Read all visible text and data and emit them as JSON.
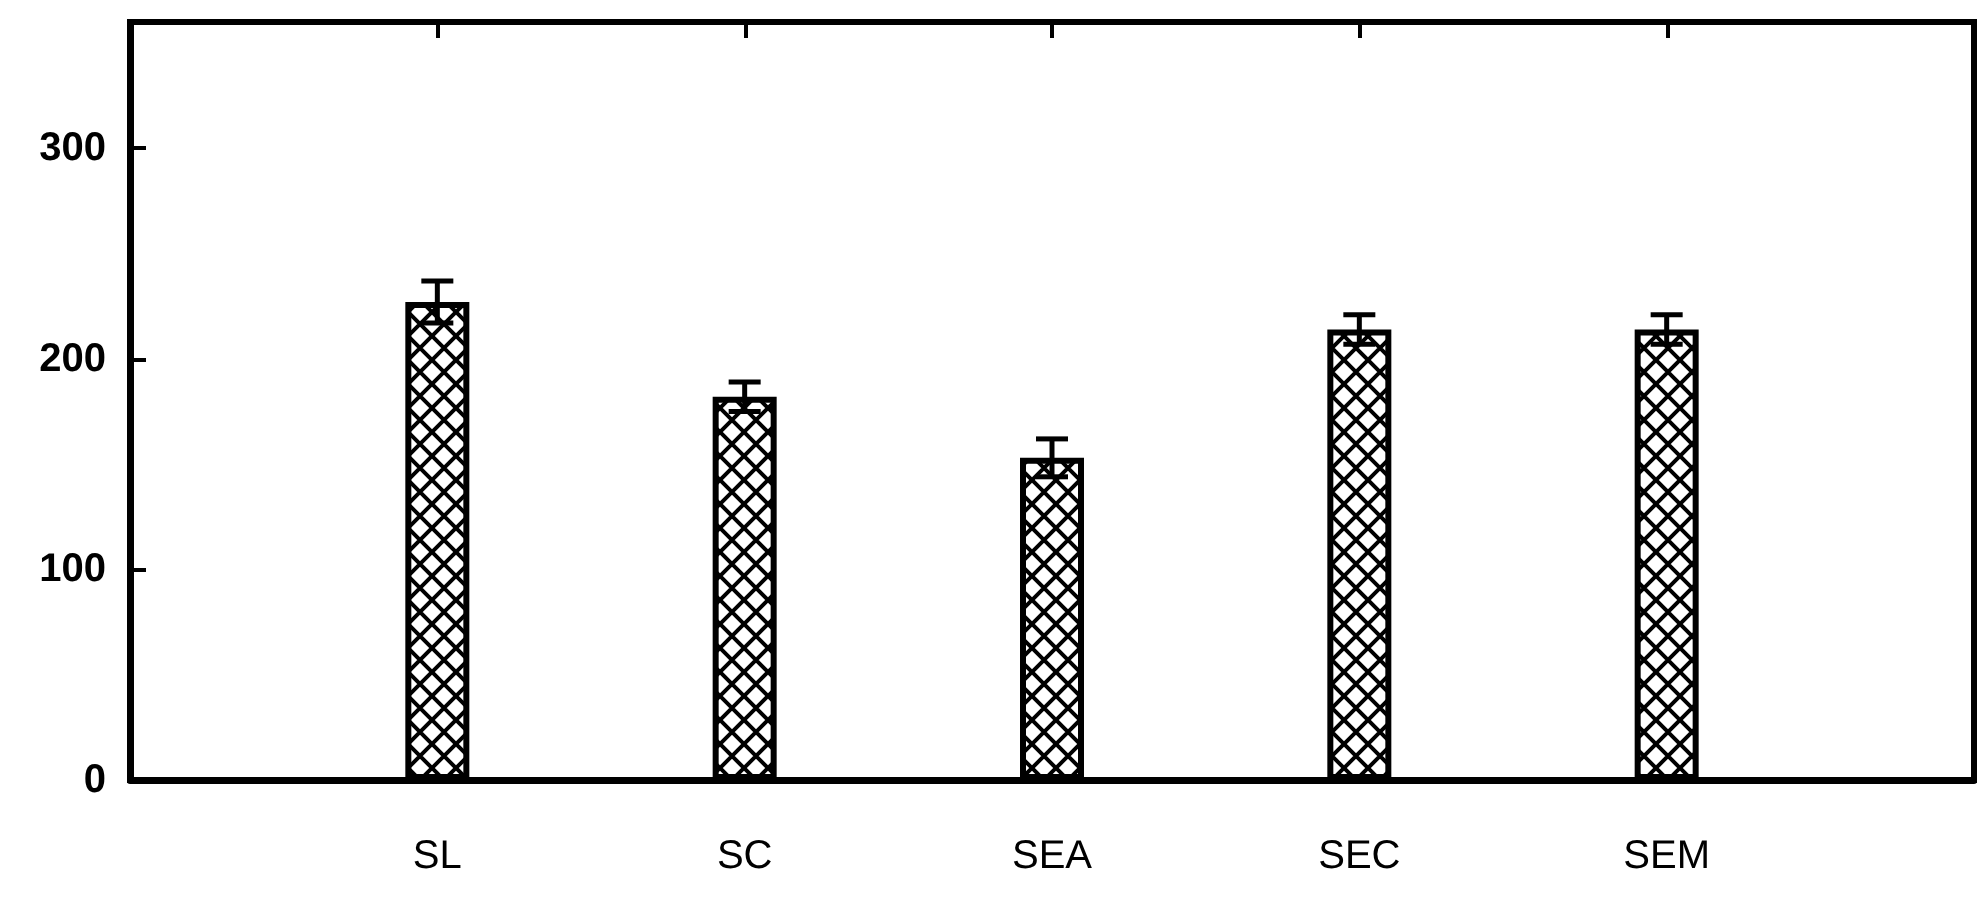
{
  "chart_data": {
    "type": "bar",
    "categories": [
      "SL",
      "SC",
      "SEA",
      "SEC",
      "SEM"
    ],
    "values": [
      227,
      182,
      153,
      214,
      214
    ],
    "errors": [
      10,
      7,
      9,
      7,
      7
    ],
    "color": "#000000",
    "ylim": [
      0,
      360
    ],
    "yticks": [
      0,
      100,
      200,
      300
    ],
    "grid": false
  }
}
